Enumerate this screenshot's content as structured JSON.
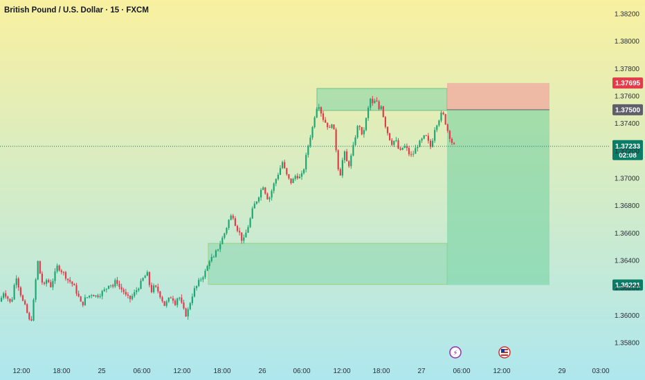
{
  "header": {
    "title": "British Pound / U.S. Dollar · 15 · FXCM"
  },
  "colors": {
    "bg_top": "#f9f0a0",
    "bg_bottom": "#aee7ee",
    "up": "#1ea672",
    "down": "#e23b4a",
    "zone": "#7fd3a7",
    "target": "#6fcf9f",
    "stop": "#f0a8a0",
    "price_tag": "#0b7d67",
    "stop_tag": "#e23b4a",
    "entry_tag": "#5d606b",
    "target_tag": "#0b7d67"
  },
  "chart_data": {
    "type": "candlestick",
    "symbol": "British Pound / U.S. Dollar",
    "interval": "15",
    "source": "FXCM",
    "y_ticks": [
      "1.38200",
      "1.38000",
      "1.37800",
      "1.37600",
      "1.37400",
      "1.37200",
      "1.37000",
      "1.36800",
      "1.36600",
      "1.36400",
      "1.36200",
      "1.36000",
      "1.35800"
    ],
    "x_ticks": [
      "12:00",
      "18:00",
      "25",
      "06:00",
      "12:00",
      "18:00",
      "26",
      "06:00",
      "12:00",
      "18:00",
      "27",
      "06:00",
      "12:00",
      "29",
      "03:00"
    ],
    "ylim": [
      1.3576,
      1.3827
    ],
    "current_price": {
      "price": "1.37233",
      "countdown": "02:08",
      "value": 1.37233
    },
    "position": {
      "stop": {
        "label": "1.37695",
        "value": 1.37695
      },
      "entry": {
        "label": "1.37500",
        "value": 1.375
      },
      "target": {
        "label": "1.36221",
        "value": 1.36221
      }
    },
    "zones": [
      {
        "name": "upper",
        "top": 1.37655,
        "bottom": 1.37495
      },
      {
        "name": "lower",
        "top": 1.36525,
        "bottom": 1.36225
      }
    ],
    "events": [
      {
        "kind": "lightning",
        "glyph": "⚡",
        "time": "06:00"
      },
      {
        "kind": "flag-us",
        "glyph": "US",
        "time": "12:00"
      }
    ],
    "approx_path": [
      [
        0,
        1.361
      ],
      [
        5,
        1.3617
      ],
      [
        10,
        1.3614
      ],
      [
        14,
        1.3609
      ],
      [
        18,
        1.3613
      ],
      [
        23,
        1.363
      ],
      [
        28,
        1.3619
      ],
      [
        33,
        1.361
      ],
      [
        38,
        1.3604
      ],
      [
        42,
        1.3596
      ],
      [
        46,
        1.3598
      ],
      [
        51,
        1.3622
      ],
      [
        54,
        1.3641
      ],
      [
        58,
        1.363
      ],
      [
        63,
        1.362
      ],
      [
        68,
        1.3627
      ],
      [
        73,
        1.3621
      ],
      [
        78,
        1.3628
      ],
      [
        83,
        1.3636
      ],
      [
        88,
        1.3633
      ],
      [
        93,
        1.363
      ],
      [
        98,
        1.3626
      ],
      [
        103,
        1.3624
      ],
      [
        108,
        1.362
      ],
      [
        113,
        1.3614
      ],
      [
        118,
        1.3607
      ],
      [
        123,
        1.3612
      ],
      [
        128,
        1.3614
      ],
      [
        133,
        1.3616
      ],
      [
        138,
        1.3614
      ],
      [
        143,
        1.3615
      ],
      [
        148,
        1.3617
      ],
      [
        153,
        1.3619
      ],
      [
        158,
        1.3624
      ],
      [
        163,
        1.3621
      ],
      [
        168,
        1.3626
      ],
      [
        173,
        1.362
      ],
      [
        178,
        1.3618
      ],
      [
        183,
        1.3613
      ],
      [
        188,
        1.3612
      ],
      [
        193,
        1.3615
      ],
      [
        198,
        1.3619
      ],
      [
        203,
        1.3623
      ],
      [
        208,
        1.3628
      ],
      [
        213,
        1.363
      ],
      [
        218,
        1.3617
      ],
      [
        223,
        1.3621
      ],
      [
        228,
        1.3618
      ],
      [
        233,
        1.3613
      ],
      [
        238,
        1.3607
      ],
      [
        243,
        1.3611
      ],
      [
        248,
        1.3614
      ],
      [
        253,
        1.3609
      ],
      [
        258,
        1.3615
      ],
      [
        263,
        1.3607
      ],
      [
        268,
        1.36
      ],
      [
        272,
        1.3604
      ],
      [
        276,
        1.3612
      ],
      [
        280,
        1.3618
      ],
      [
        284,
        1.3621
      ],
      [
        288,
        1.3625
      ],
      [
        292,
        1.3628
      ],
      [
        296,
        1.3631
      ],
      [
        300,
        1.3636
      ],
      [
        304,
        1.3643
      ],
      [
        308,
        1.364
      ],
      [
        312,
        1.3646
      ],
      [
        317,
        1.3651
      ],
      [
        322,
        1.3657
      ],
      [
        326,
        1.3662
      ],
      [
        331,
        1.367
      ],
      [
        336,
        1.3674
      ],
      [
        341,
        1.3665
      ],
      [
        346,
        1.366
      ],
      [
        351,
        1.3653
      ],
      [
        356,
        1.3661
      ],
      [
        361,
        1.3669
      ],
      [
        366,
        1.3679
      ],
      [
        371,
        1.3684
      ],
      [
        376,
        1.369
      ],
      [
        380,
        1.3695
      ],
      [
        384,
        1.3689
      ],
      [
        388,
        1.3684
      ],
      [
        392,
        1.369
      ],
      [
        396,
        1.3696
      ],
      [
        400,
        1.3701
      ],
      [
        404,
        1.3706
      ],
      [
        408,
        1.3712
      ],
      [
        412,
        1.3705
      ],
      [
        416,
        1.37
      ],
      [
        420,
        1.3697
      ],
      [
        424,
        1.3699
      ],
      [
        428,
        1.3703
      ],
      [
        432,
        1.37
      ],
      [
        436,
        1.3702
      ],
      [
        440,
        1.3709
      ],
      [
        444,
        1.3721
      ],
      [
        448,
        1.373
      ],
      [
        452,
        1.3738
      ],
      [
        456,
        1.375
      ],
      [
        460,
        1.3755
      ],
      [
        464,
        1.3748
      ],
      [
        468,
        1.3742
      ],
      [
        472,
        1.374
      ],
      [
        476,
        1.3735
      ],
      [
        480,
        1.3742
      ],
      [
        484,
        1.3729
      ],
      [
        488,
        1.371
      ],
      [
        491,
        1.3701
      ],
      [
        494,
        1.371
      ],
      [
        497,
        1.372
      ],
      [
        500,
        1.3714
      ],
      [
        503,
        1.3708
      ],
      [
        507,
        1.3715
      ],
      [
        511,
        1.3724
      ],
      [
        515,
        1.3735
      ],
      [
        519,
        1.374
      ],
      [
        523,
        1.373
      ],
      [
        527,
        1.3738
      ],
      [
        531,
        1.3748
      ],
      [
        535,
        1.3758
      ],
      [
        539,
        1.3753
      ],
      [
        543,
        1.3758
      ],
      [
        547,
        1.375
      ],
      [
        551,
        1.3754
      ],
      [
        555,
        1.3742
      ],
      [
        559,
        1.3735
      ],
      [
        563,
        1.3729
      ],
      [
        567,
        1.3725
      ],
      [
        571,
        1.3729
      ],
      [
        575,
        1.3722
      ],
      [
        579,
        1.3719
      ],
      [
        583,
        1.3724
      ],
      [
        587,
        1.3722
      ],
      [
        591,
        1.3718
      ],
      [
        595,
        1.3716
      ],
      [
        599,
        1.372
      ],
      [
        603,
        1.3724
      ],
      [
        607,
        1.3726
      ],
      [
        611,
        1.3729
      ],
      [
        615,
        1.3731
      ],
      [
        619,
        1.3726
      ],
      [
        623,
        1.3722
      ],
      [
        627,
        1.3735
      ],
      [
        631,
        1.374
      ],
      [
        635,
        1.3744
      ],
      [
        639,
        1.3748
      ],
      [
        642,
        1.3744
      ],
      [
        645,
        1.3738
      ],
      [
        648,
        1.3733
      ],
      [
        651,
        1.3729
      ],
      [
        654,
        1.3725
      ],
      [
        657,
        1.3723
      ]
    ]
  }
}
